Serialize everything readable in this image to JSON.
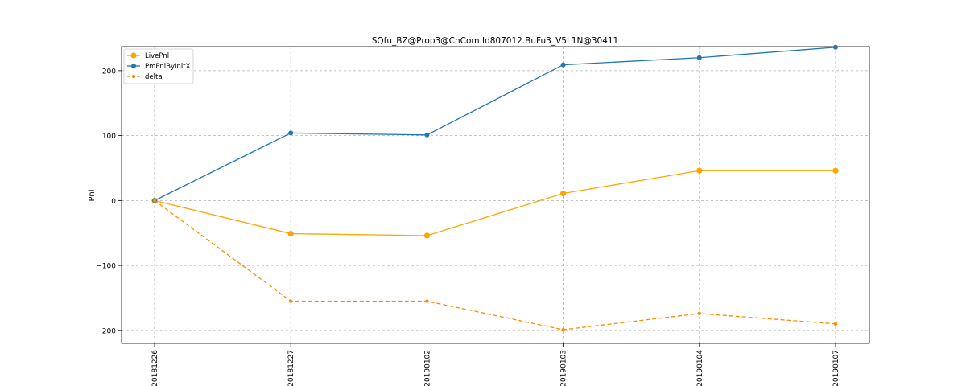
{
  "chart_data": {
    "type": "line",
    "title": "SQfu_BZ@Prop3@CnCom.Id807012.BuFu3_V5L1N@30411",
    "xlabel": "",
    "ylabel": "Pnl",
    "categories": [
      "20181226",
      "20181227",
      "20190102",
      "20190103",
      "20190104",
      "20190107"
    ],
    "ylim": [
      -220,
      237
    ],
    "yticks": [
      -200,
      -100,
      0,
      100,
      200
    ],
    "ytick_labels": [
      "−200",
      "−100",
      "0",
      "100",
      "200"
    ],
    "grid": true,
    "legend_position": "top-left",
    "series": [
      {
        "name": "LivePnl",
        "color": "#ffa500",
        "style": "solid",
        "marker": "large",
        "values": [
          0,
          -51,
          -54,
          11,
          46,
          46
        ]
      },
      {
        "name": "PmPnlByInitX",
        "color": "#1f77b4",
        "style": "solid",
        "marker": "medium",
        "values": [
          0,
          104,
          101,
          209,
          220,
          236
        ]
      },
      {
        "name": "delta",
        "color": "#ff8c00",
        "style": "dashed",
        "marker": "small",
        "values": [
          0,
          -155,
          -155,
          -199,
          -174,
          -190
        ]
      }
    ]
  }
}
